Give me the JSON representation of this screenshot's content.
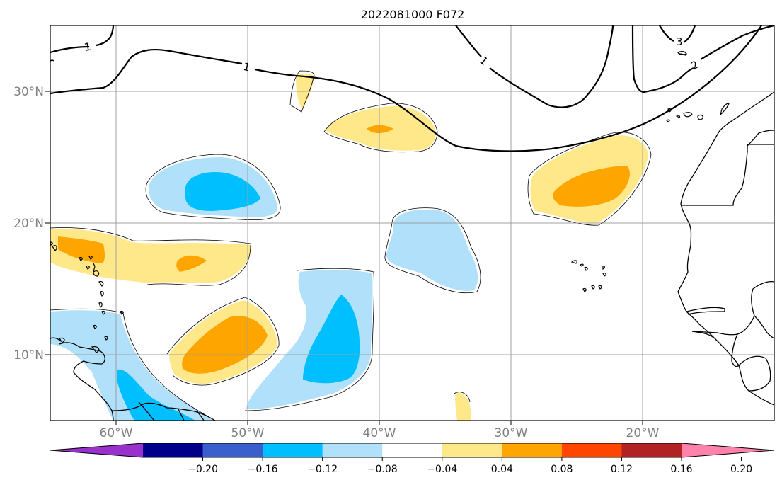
{
  "title": "2022081000 F072",
  "map": {
    "lon_range": [
      -65,
      -10
    ],
    "lat_range": [
      5,
      35
    ],
    "lat_labels": [
      {
        "value": 30,
        "text": "30°N"
      },
      {
        "value": 20,
        "text": "20°N"
      },
      {
        "value": 10,
        "text": "10°N"
      }
    ],
    "lon_labels": [
      {
        "value": -60,
        "text": "60°W"
      },
      {
        "value": -50,
        "text": "50°W"
      },
      {
        "value": -40,
        "text": "40°W"
      },
      {
        "value": -30,
        "text": "30°W"
      },
      {
        "value": -20,
        "text": "20°W"
      }
    ],
    "contour_labels": [
      "1",
      "1",
      "1",
      "3",
      "2"
    ]
  },
  "colorbar": {
    "colors": [
      "#9932cc",
      "#00008b",
      "#3a5fcd",
      "#00bfff",
      "#b0e0fa",
      "#ffffff",
      "#ffe88a",
      "#ffa500",
      "#ff4500",
      "#b22222",
      "#ff82ab"
    ],
    "labels": [
      "−0.20",
      "−0.16",
      "−0.12",
      "−0.08",
      "−0.04",
      "0.04",
      "0.08",
      "0.12",
      "0.16",
      "0.20"
    ]
  },
  "colors": {
    "light_blue": "#b0e0fa",
    "deep_sky_blue": "#00bfff",
    "light_yellow": "#ffe88a",
    "orange": "#ffa500"
  }
}
